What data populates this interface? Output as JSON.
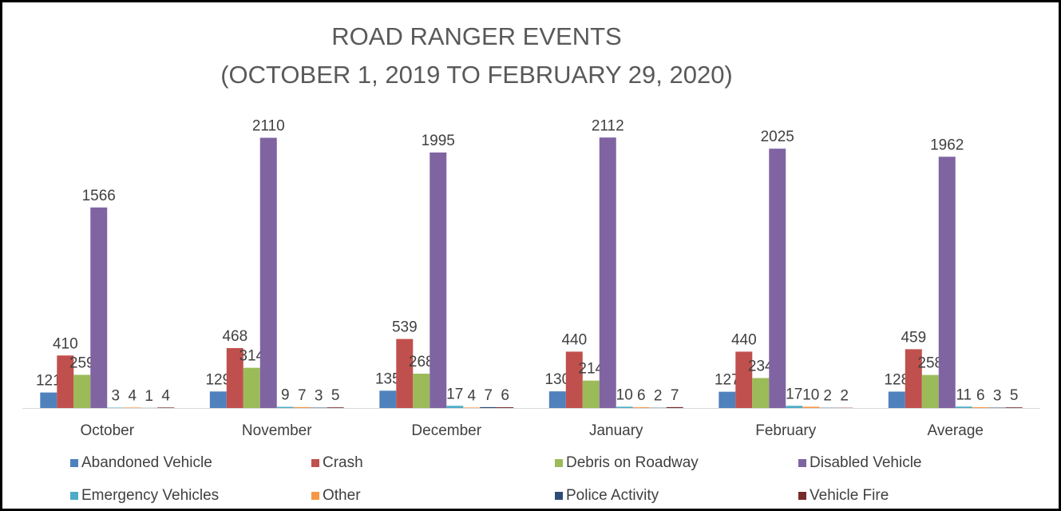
{
  "chart_data": {
    "type": "bar",
    "title": "ROAD RANGER EVENTS",
    "subtitle": "(OCTOBER 1, 2019 TO FEBRUARY 29, 2020)",
    "categories": [
      "October",
      "November",
      "December",
      "January",
      "February",
      "Average"
    ],
    "ylim": [
      0,
      2500
    ],
    "grid": false,
    "legend": "bottom",
    "series": [
      {
        "name": "Abandoned Vehicle",
        "color": "#4f81bd",
        "values": [
          121,
          129,
          135,
          130,
          127,
          128
        ]
      },
      {
        "name": "Crash",
        "color": "#c0504d",
        "values": [
          410,
          468,
          539,
          440,
          440,
          459
        ]
      },
      {
        "name": "Debris on Roadway",
        "color": "#9bbb59",
        "values": [
          259,
          314,
          268,
          214,
          234,
          258
        ]
      },
      {
        "name": "Disabled Vehicle",
        "color": "#8064a2",
        "values": [
          1566,
          2110,
          1995,
          2112,
          2025,
          1962
        ]
      },
      {
        "name": "Emergency Vehicles",
        "color": "#4bacc6",
        "values": [
          3,
          9,
          17,
          10,
          17,
          11
        ]
      },
      {
        "name": "Other",
        "color": "#f79646",
        "values": [
          4,
          7,
          4,
          6,
          10,
          6
        ]
      },
      {
        "name": "Police Activity",
        "color": "#2c4d75",
        "values": [
          1,
          3,
          7,
          2,
          2,
          3
        ]
      },
      {
        "name": "Vehicle Fire",
        "color": "#772c2a",
        "values": [
          4,
          5,
          6,
          7,
          2,
          5
        ]
      }
    ]
  }
}
